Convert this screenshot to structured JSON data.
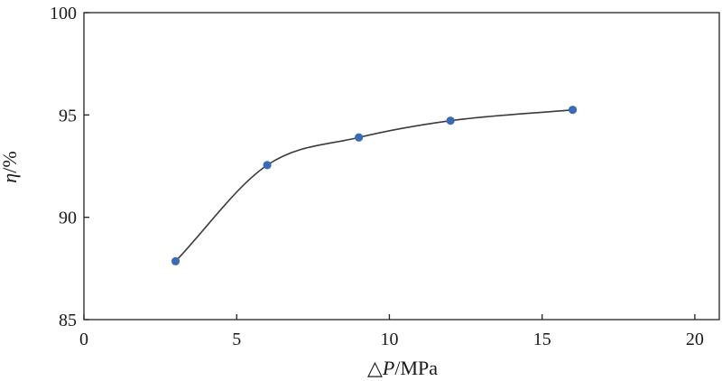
{
  "chart_data": {
    "type": "line",
    "title": "",
    "xlabel": {
      "prefix": "△",
      "variable": "P",
      "unit": "/MPa"
    },
    "ylabel": {
      "variable": "η",
      "unit": "/%"
    },
    "xlim": [
      0,
      20.8
    ],
    "ylim": [
      85,
      100
    ],
    "xticks": [
      0,
      5,
      10,
      15,
      20
    ],
    "yticks": [
      85,
      90,
      95,
      100
    ],
    "grid": false,
    "line_style": "smooth",
    "colors": {
      "line": "#3a3a3a",
      "marker": "#3b6bb7",
      "axis": "#222222"
    },
    "series": [
      {
        "x": [
          3,
          6,
          9,
          12,
          16
        ],
        "y": [
          87.85,
          92.55,
          93.9,
          94.72,
          95.25
        ]
      }
    ]
  }
}
